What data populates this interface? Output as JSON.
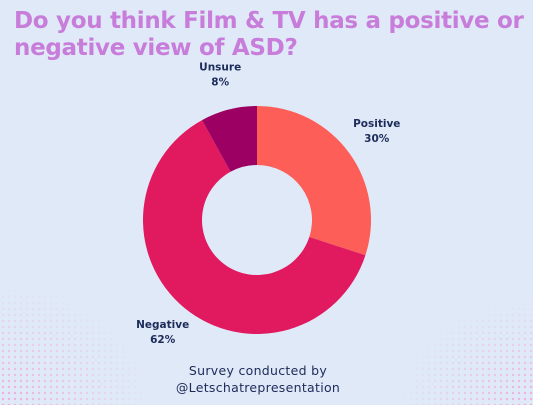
{
  "chart_data": {
    "type": "donut",
    "title": "Do you think Film & TV has a positive or negative view of ASD?",
    "categories": [
      "Positive",
      "Negative",
      "Unsure"
    ],
    "values": [
      30,
      62,
      8
    ],
    "value_labels": [
      "30%",
      "62%",
      "8%"
    ],
    "colors": [
      "#fd5e57",
      "#e1195f",
      "#9c0063"
    ],
    "source": "Survey conducted by @Letschatrepresentation"
  }
}
